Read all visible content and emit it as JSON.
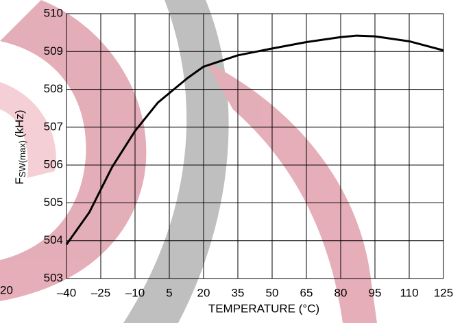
{
  "chart_data": {
    "type": "line",
    "x_label": "TEMPERATURE (°C)",
    "y_label": {
      "main": "F",
      "sub": "SW(max)",
      "unit": "(kHz)"
    },
    "fragment_label": "20",
    "x": [
      -40,
      -30,
      -20,
      -10,
      0,
      13,
      20,
      35,
      50,
      65,
      80,
      87,
      95,
      110,
      125
    ],
    "series": [
      {
        "name": "FSW(max)",
        "color": "#000000",
        "values": [
          503.9,
          504.75,
          505.95,
          506.9,
          507.65,
          508.3,
          508.6,
          508.9,
          509.08,
          509.25,
          509.38,
          509.42,
          509.4,
          509.27,
          509.03
        ]
      }
    ],
    "xlim": [
      -40,
      125
    ],
    "xticks": [
      {
        "value": -40,
        "label": "–40"
      },
      {
        "value": -25,
        "label": "–25"
      },
      {
        "value": -10,
        "label": "–10"
      },
      5,
      20,
      35,
      50,
      65,
      80,
      95,
      110,
      125
    ],
    "ylim": [
      503,
      510
    ],
    "yticks": [
      503,
      504,
      505,
      506,
      507,
      508,
      509,
      510
    ],
    "grid": true
  }
}
